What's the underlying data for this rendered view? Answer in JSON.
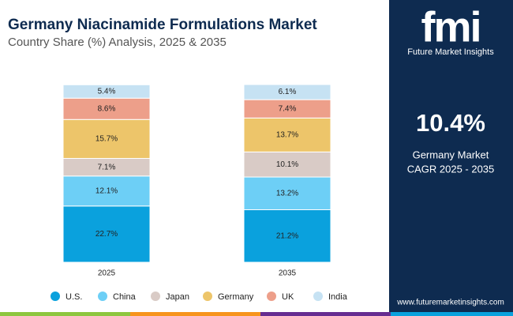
{
  "chart_data": {
    "type": "stacked_bar",
    "title": "Germany Niacinamide Formulations Market",
    "subtitle": "Country Share (%) Analysis, 2025 & 2035",
    "categories": [
      "2025",
      "2035"
    ],
    "series": [
      {
        "name": "U.S.",
        "color": "#0aa1dd",
        "values": [
          22.7,
          21.2
        ],
        "value_labels": [
          "22.7%",
          "21.2%"
        ]
      },
      {
        "name": "China",
        "color": "#6dcff6",
        "values": [
          12.1,
          13.2
        ],
        "value_labels": [
          "12.1%",
          "13.2%"
        ]
      },
      {
        "name": "Japan",
        "color": "#d9cbc6",
        "values": [
          7.1,
          10.1
        ],
        "value_labels": [
          "7.1%",
          "10.1%"
        ]
      },
      {
        "name": "Germany",
        "color": "#edc56a",
        "values": [
          15.7,
          13.7
        ],
        "value_labels": [
          "15.7%",
          "13.7%"
        ]
      },
      {
        "name": "UK",
        "color": "#ed9f8a",
        "values": [
          8.6,
          7.4
        ],
        "value_labels": [
          "8.6%",
          "7.4%"
        ]
      },
      {
        "name": "India",
        "color": "#c6e2f3",
        "values": [
          5.4,
          6.1
        ],
        "value_labels": [
          "5.4%",
          "6.1%"
        ]
      }
    ]
  },
  "sidebar": {
    "logo": "fmi",
    "brand": "Future Market Insights",
    "highlight": "10.4%",
    "highlight_caption": [
      "Germany Market",
      "CAGR 2025 - 2035"
    ],
    "website": "www.futuremarketinsights.com"
  }
}
